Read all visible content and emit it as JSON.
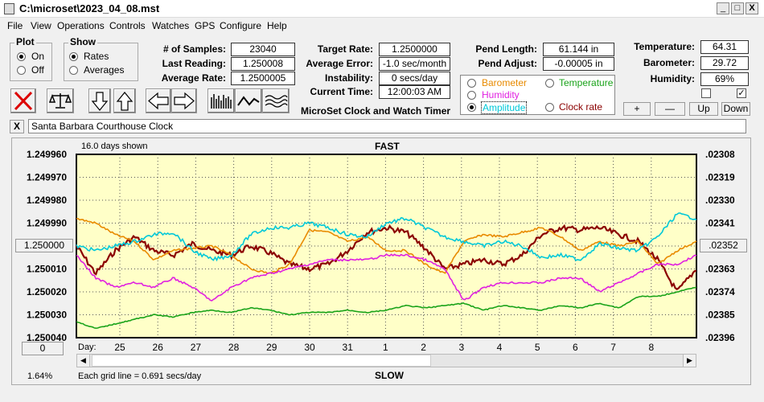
{
  "window": {
    "title": "C:\\microset\\2023_04_08.mst",
    "min": "_",
    "max": "□",
    "close": "X"
  },
  "menu": [
    "File",
    "View",
    "Operations",
    "Controls",
    "Watches",
    "GPS",
    "Configure",
    "Help"
  ],
  "plot": {
    "title": "Plot",
    "on": "On",
    "off": "Off",
    "selected": "On"
  },
  "show": {
    "title": "Show",
    "rates": "Rates",
    "averages": "Averages",
    "selected": "Rates"
  },
  "stats1": [
    {
      "label": "# of Samples:",
      "value": "23040"
    },
    {
      "label": "Last Reading:",
      "value": "1.250008"
    },
    {
      "label": "Average Rate:",
      "value": "1.2500005"
    }
  ],
  "stats2": [
    {
      "label": "Target Rate:",
      "value": "1.2500000"
    },
    {
      "label": "Average Error:",
      "value": "-1.0 sec/month"
    },
    {
      "label": "Instability:",
      "value": "0 secs/day"
    },
    {
      "label": "Current Time:",
      "value": "12:00:03 AM"
    }
  ],
  "stats3": [
    {
      "label": "Pend Length:",
      "value": "61.144 in"
    },
    {
      "label": "Pend Adjust:",
      "value": "-0.00005 in"
    }
  ],
  "stats4": [
    {
      "label": "Temperature:",
      "value": "64.31"
    },
    {
      "label": "Barometer:",
      "value": "29.72"
    },
    {
      "label": "Humidity:",
      "value": "69%"
    }
  ],
  "app_caption": "MicroSet Clock and Watch Timer",
  "series_select": [
    {
      "label": "Barometer",
      "color": "#e88a00",
      "on": false
    },
    {
      "label": "Temperature",
      "color": "#1aa31a",
      "on": false
    },
    {
      "label": "Humidity",
      "color": "#e020e0",
      "on": false
    },
    {
      "label": "Amplitude",
      "color": "#00c8d8",
      "on": true
    },
    {
      "label": "Clock rate",
      "color": "#8b0000",
      "on": false
    }
  ],
  "adj_buttons": {
    "plus": "+",
    "minus": "—",
    "up": "Up",
    "down": "Down"
  },
  "clock_name": "Santa Barbara Courthouse Clock",
  "clear_label": "X",
  "chart_info": {
    "days_shown": "16.0 days shown",
    "fast": "FAST",
    "slow": "SLOW",
    "grid_note": "Each grid line = 0.691 secs/day",
    "percent": "1.64%",
    "left_button": "1.250000",
    "right_button": ".02352",
    "zero_button": "0",
    "day_label": "Day:"
  },
  "chart_data": {
    "type": "line",
    "y_left_ticks": [
      "1.249960",
      "1.249970",
      "1.249980",
      "1.249990",
      "1.250000",
      "1.250010",
      "1.250020",
      "1.250030",
      "1.250040"
    ],
    "y_right_ticks": [
      ".02308",
      ".02319",
      ".02330",
      ".02341",
      ".02352",
      ".02363",
      ".02374",
      ".02385",
      ".02396"
    ],
    "x_days": [
      "25",
      "26",
      "27",
      "28",
      "29",
      "30",
      "31",
      "1",
      "2",
      "3",
      "4",
      "5",
      "6",
      "7",
      "8"
    ],
    "ylim": [
      1.24996,
      1.25004
    ],
    "series": [
      {
        "color": "#8b0000",
        "x": [
          0,
          0.5,
          1,
          1.5,
          2,
          2.5,
          3,
          3.5,
          4,
          4.5,
          5,
          5.5,
          6,
          6.5,
          7,
          7.5,
          8,
          8.5,
          9,
          9.5,
          10,
          10.5,
          11,
          11.5,
          12,
          12.5,
          13,
          13.5,
          14,
          14.5,
          15,
          15.5,
          16
        ],
        "y": [
          1.25,
          1.250012,
          1.250002,
          1.249996,
          1.250002,
          1.250004,
          1.249999,
          1.250002,
          1.250004,
          1.25,
          1.250003,
          1.250008,
          1.25001,
          1.250008,
          1.250002,
          1.249994,
          1.249992,
          1.249994,
          1.250001,
          1.25001,
          1.250008,
          1.250006,
          1.250008,
          1.250004,
          1.249995,
          1.249992,
          1.249993,
          1.249992,
          1.249995,
          1.249998,
          1.250006,
          1.25002,
          1.25001
        ]
      },
      {
        "color": "#e88a00",
        "x": [
          0,
          0.5,
          1,
          1.5,
          2,
          2.5,
          3,
          3.5,
          4,
          4.5,
          5,
          5.5,
          6,
          6.5,
          7,
          7.5,
          8,
          8.5,
          9,
          9.5,
          10,
          10.5,
          11,
          11.5,
          12,
          12.5,
          13,
          13.5,
          14,
          14.5,
          15,
          15.5,
          16
        ],
        "y": [
          1.249988,
          1.24999,
          1.249995,
          1.249998,
          1.250006,
          1.250002,
          1.250001,
          1.25,
          1.250004,
          1.25001,
          1.250012,
          1.250008,
          1.249993,
          1.249994,
          1.249998,
          1.249996,
          1.250002,
          1.250002,
          1.250008,
          1.250012,
          1.249998,
          1.249995,
          1.249996,
          1.249994,
          1.249992,
          1.249996,
          1.250002,
          1.249998,
          1.25,
          1.249998,
          1.250008,
          1.250002,
          1.249998
        ]
      },
      {
        "color": "#00c8d8",
        "x": [
          0,
          0.5,
          1,
          1.5,
          2,
          2.5,
          3,
          3.5,
          4,
          4.5,
          5,
          5.5,
          6,
          6.5,
          7,
          7.5,
          8,
          8.5,
          9,
          9.5,
          10,
          10.5,
          11,
          11.5,
          12,
          12.5,
          13,
          13.5,
          14,
          14.5,
          15,
          15.5,
          16
        ],
        "y": [
          1.25,
          1.250002,
          1.25,
          1.249998,
          1.249995,
          1.249994,
          1.250002,
          1.250006,
          1.250004,
          1.249995,
          1.249992,
          1.249992,
          1.24999,
          1.249992,
          1.249995,
          1.249996,
          1.24999,
          1.249988,
          1.249992,
          1.249996,
          1.249998,
          1.25,
          1.249998,
          1.25,
          1.250005,
          1.250004,
          1.250006,
          1.249999,
          1.250001,
          1.250002,
          1.249996,
          1.249986,
          1.249988
        ]
      },
      {
        "color": "#e020e0",
        "x": [
          0,
          0.5,
          1,
          1.5,
          2,
          2.5,
          3,
          3.5,
          4,
          4.5,
          5,
          5.5,
          6,
          6.5,
          7,
          7.5,
          8,
          8.5,
          9,
          9.5,
          10,
          10.5,
          11,
          11.5,
          12,
          12.5,
          13,
          13.5,
          14,
          14.5,
          15,
          15.5,
          16
        ],
        "y": [
          1.250004,
          1.250014,
          1.250018,
          1.250016,
          1.250018,
          1.250014,
          1.250018,
          1.250024,
          1.250018,
          1.250014,
          1.250012,
          1.25001,
          1.250008,
          1.250006,
          1.250006,
          1.250006,
          1.250004,
          1.250004,
          1.250006,
          1.25001,
          1.250024,
          1.250018,
          1.250016,
          1.250016,
          1.250016,
          1.250014,
          1.250014,
          1.25002,
          1.250016,
          1.250012,
          1.250008,
          1.250008,
          1.250004
        ]
      },
      {
        "color": "#1aa31a",
        "x": [
          0,
          0.5,
          1,
          1.5,
          2,
          2.5,
          3,
          3.5,
          4,
          4.5,
          5,
          5.5,
          6,
          6.5,
          7,
          7.5,
          8,
          8.5,
          9,
          9.5,
          10,
          10.5,
          11,
          11.5,
          12,
          12.5,
          13,
          13.5,
          14,
          14.5,
          15,
          15.5,
          16
        ],
        "y": [
          1.250033,
          1.250036,
          1.250034,
          1.250032,
          1.25003,
          1.250031,
          1.250029,
          1.250028,
          1.250029,
          1.250027,
          1.250028,
          1.25003,
          1.250029,
          1.250029,
          1.250028,
          1.250029,
          1.250028,
          1.250026,
          1.250027,
          1.250026,
          1.250025,
          1.250028,
          1.250026,
          1.250027,
          1.250028,
          1.250026,
          1.250027,
          1.250025,
          1.250027,
          1.250022,
          1.250022,
          1.25002,
          1.250018
        ]
      }
    ]
  }
}
